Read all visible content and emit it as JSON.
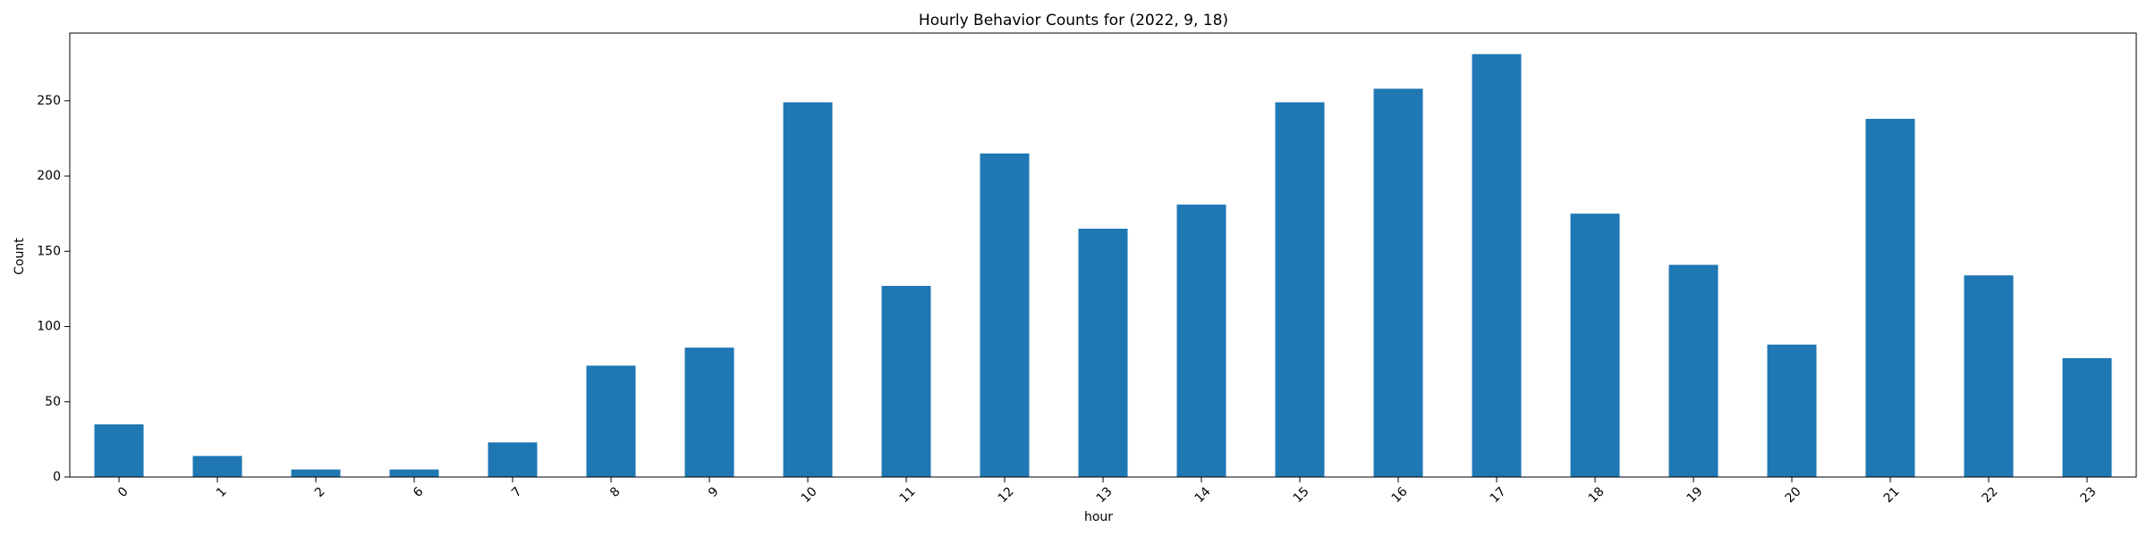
{
  "chart_data": {
    "type": "bar",
    "title": "Hourly Behavior Counts for (2022, 9, 18)",
    "xlabel": "hour",
    "ylabel": "Count",
    "categories": [
      "0",
      "1",
      "2",
      "6",
      "7",
      "8",
      "9",
      "10",
      "11",
      "12",
      "13",
      "14",
      "15",
      "16",
      "17",
      "18",
      "19",
      "20",
      "21",
      "22",
      "23"
    ],
    "values": [
      35,
      14,
      5,
      5,
      23,
      74,
      86,
      249,
      127,
      215,
      165,
      181,
      249,
      258,
      281,
      175,
      141,
      88,
      238,
      134,
      79
    ],
    "yticks": [
      "0",
      "50",
      "100",
      "150",
      "200",
      "250"
    ],
    "ylim": [
      0,
      295
    ],
    "bar_color": "#1f77b4",
    "grid": false,
    "legend": false
  }
}
